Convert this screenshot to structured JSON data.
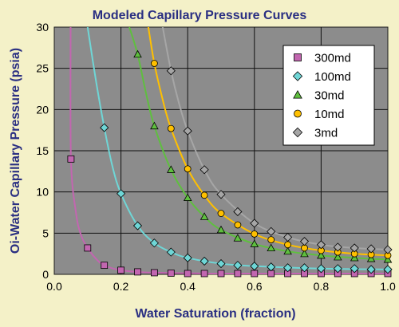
{
  "chart_data": {
    "type": "scatter",
    "title": "Modeled Capillary Pressure Curves",
    "xlabel": "Water Saturation (fraction)",
    "ylabel": "Oi-Water Capillary Pressure (psia)",
    "xlim": [
      0,
      1.0
    ],
    "ylim": [
      0,
      30
    ],
    "xticks": [
      "0.0",
      "0.2",
      "0.4",
      "0.6",
      "0.8",
      "1.0"
    ],
    "yticks": [
      "0",
      "5",
      "10",
      "15",
      "20",
      "25",
      "30"
    ],
    "x_tick_values": [
      0,
      0.2,
      0.4,
      0.6,
      0.8,
      1.0
    ],
    "y_tick_values": [
      0,
      5,
      10,
      15,
      20,
      25,
      30
    ],
    "grid": true,
    "legend_position": "top-right",
    "series": [
      {
        "name": "300md",
        "color": "#c266b0",
        "marker": "square",
        "points": [
          [
            0.05,
            14.0
          ],
          [
            0.1,
            3.2
          ],
          [
            0.15,
            1.1
          ],
          [
            0.2,
            0.5
          ],
          [
            0.25,
            0.3
          ],
          [
            0.3,
            0.2
          ],
          [
            0.35,
            0.15
          ],
          [
            0.4,
            0.1
          ],
          [
            0.45,
            0.1
          ],
          [
            0.5,
            0.1
          ],
          [
            0.55,
            0.1
          ],
          [
            0.6,
            0.1
          ],
          [
            0.65,
            0.1
          ],
          [
            0.7,
            0.1
          ],
          [
            0.75,
            0.1
          ],
          [
            0.8,
            0.1
          ],
          [
            0.85,
            0.1
          ],
          [
            0.9,
            0.1
          ],
          [
            0.95,
            0.1
          ],
          [
            1.0,
            0.1
          ]
        ],
        "curve": [
          [
            0.049,
            30
          ],
          [
            0.05,
            14.0
          ],
          [
            0.065,
            7.5
          ],
          [
            0.08,
            4.8
          ],
          [
            0.1,
            3.2
          ],
          [
            0.125,
            1.9
          ],
          [
            0.15,
            1.1
          ],
          [
            0.2,
            0.5
          ],
          [
            0.3,
            0.2
          ],
          [
            0.5,
            0.1
          ],
          [
            1.0,
            0.1
          ]
        ]
      },
      {
        "name": "100md",
        "color": "#6fd6d6",
        "marker": "diamond",
        "points": [
          [
            0.15,
            17.8
          ],
          [
            0.2,
            9.8
          ],
          [
            0.25,
            5.9
          ],
          [
            0.3,
            3.8
          ],
          [
            0.35,
            2.7
          ],
          [
            0.4,
            2.0
          ],
          [
            0.45,
            1.6
          ],
          [
            0.5,
            1.3
          ],
          [
            0.55,
            1.1
          ],
          [
            0.6,
            1.0
          ],
          [
            0.65,
            0.9
          ],
          [
            0.7,
            0.8
          ],
          [
            0.75,
            0.8
          ],
          [
            0.8,
            0.7
          ],
          [
            0.85,
            0.7
          ],
          [
            0.9,
            0.7
          ],
          [
            0.95,
            0.6
          ],
          [
            1.0,
            0.6
          ]
        ],
        "curve": [
          [
            0.1,
            30
          ],
          [
            0.125,
            23.5
          ],
          [
            0.15,
            17.8
          ],
          [
            0.175,
            13.0
          ],
          [
            0.2,
            9.8
          ],
          [
            0.25,
            5.9
          ],
          [
            0.3,
            3.8
          ],
          [
            0.35,
            2.7
          ],
          [
            0.4,
            2.0
          ],
          [
            0.5,
            1.3
          ],
          [
            0.6,
            1.0
          ],
          [
            0.8,
            0.7
          ],
          [
            1.0,
            0.6
          ]
        ]
      },
      {
        "name": "30md",
        "color": "#5fbf3f",
        "marker": "triangle",
        "points": [
          [
            0.25,
            26.7
          ],
          [
            0.3,
            18.0
          ],
          [
            0.35,
            12.7
          ],
          [
            0.4,
            9.3
          ],
          [
            0.45,
            7.0
          ],
          [
            0.5,
            5.4
          ],
          [
            0.55,
            4.4
          ],
          [
            0.6,
            3.7
          ],
          [
            0.65,
            3.2
          ],
          [
            0.7,
            2.8
          ],
          [
            0.75,
            2.5
          ],
          [
            0.8,
            2.3
          ],
          [
            0.85,
            2.1
          ],
          [
            0.9,
            2.0
          ],
          [
            0.95,
            1.9
          ],
          [
            1.0,
            1.8
          ]
        ],
        "curve": [
          [
            0.225,
            30
          ],
          [
            0.25,
            26.7
          ],
          [
            0.275,
            22.0
          ],
          [
            0.3,
            18.0
          ],
          [
            0.35,
            12.7
          ],
          [
            0.4,
            9.3
          ],
          [
            0.45,
            7.0
          ],
          [
            0.5,
            5.4
          ],
          [
            0.6,
            3.7
          ],
          [
            0.7,
            2.8
          ],
          [
            0.8,
            2.3
          ],
          [
            0.9,
            2.0
          ],
          [
            1.0,
            1.8
          ]
        ]
      },
      {
        "name": "10md",
        "color": "#ffc000",
        "marker": "circle",
        "points": [
          [
            0.3,
            25.6
          ],
          [
            0.35,
            17.7
          ],
          [
            0.4,
            12.8
          ],
          [
            0.45,
            9.6
          ],
          [
            0.5,
            7.4
          ],
          [
            0.55,
            6.0
          ],
          [
            0.6,
            4.9
          ],
          [
            0.65,
            4.2
          ],
          [
            0.7,
            3.6
          ],
          [
            0.75,
            3.2
          ],
          [
            0.8,
            2.9
          ],
          [
            0.85,
            2.7
          ],
          [
            0.9,
            2.5
          ],
          [
            0.95,
            2.4
          ],
          [
            1.0,
            2.3
          ]
        ],
        "curve": [
          [
            0.282,
            30
          ],
          [
            0.3,
            25.6
          ],
          [
            0.325,
            21.2
          ],
          [
            0.35,
            17.7
          ],
          [
            0.4,
            12.8
          ],
          [
            0.45,
            9.6
          ],
          [
            0.5,
            7.4
          ],
          [
            0.6,
            4.9
          ],
          [
            0.7,
            3.6
          ],
          [
            0.8,
            2.9
          ],
          [
            0.9,
            2.5
          ],
          [
            1.0,
            2.3
          ]
        ]
      },
      {
        "name": "3md",
        "color": "#a6a6a6",
        "marker": "diamond",
        "points": [
          [
            0.35,
            24.7
          ],
          [
            0.4,
            17.4
          ],
          [
            0.45,
            12.7
          ],
          [
            0.5,
            9.7
          ],
          [
            0.55,
            7.6
          ],
          [
            0.6,
            6.2
          ],
          [
            0.65,
            5.2
          ],
          [
            0.7,
            4.5
          ],
          [
            0.75,
            4.0
          ],
          [
            0.8,
            3.6
          ],
          [
            0.85,
            3.3
          ],
          [
            0.9,
            3.2
          ],
          [
            0.95,
            3.1
          ],
          [
            1.0,
            3.0
          ]
        ],
        "curve": [
          [
            0.325,
            30
          ],
          [
            0.35,
            24.7
          ],
          [
            0.375,
            20.6
          ],
          [
            0.4,
            17.4
          ],
          [
            0.45,
            12.7
          ],
          [
            0.5,
            9.7
          ],
          [
            0.6,
            6.2
          ],
          [
            0.7,
            4.5
          ],
          [
            0.8,
            3.6
          ],
          [
            0.9,
            3.2
          ],
          [
            1.0,
            3.0
          ]
        ]
      }
    ]
  }
}
